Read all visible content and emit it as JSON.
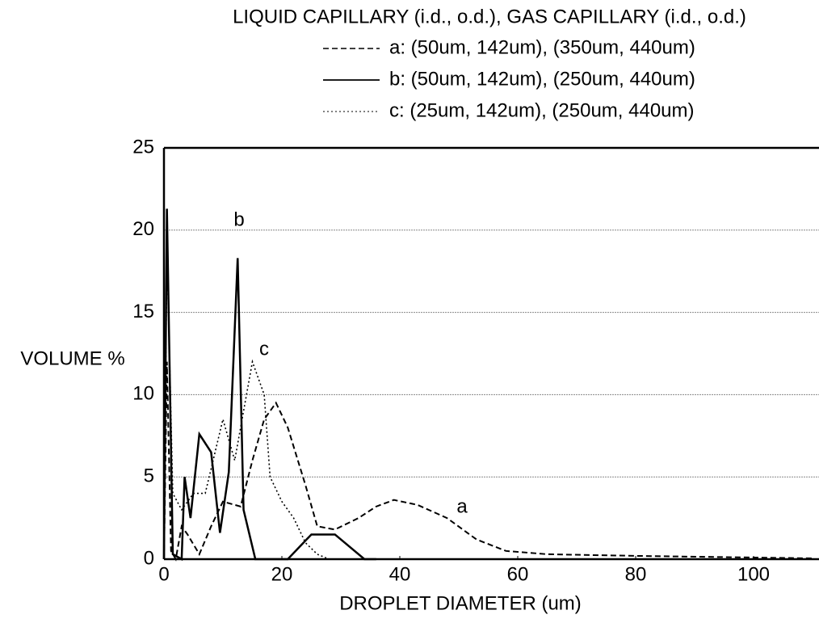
{
  "chart_data": {
    "type": "line",
    "title": "LIQUID CAPILLARY (i.d., o.d.), GAS CAPILLARY (i.d., o.d.)",
    "xlabel": "DROPLET DIAMETER (um)",
    "ylabel": "VOLUME %",
    "xlim": [
      0,
      110
    ],
    "ylim": [
      0,
      25
    ],
    "xticks": [
      0,
      20,
      40,
      60,
      80,
      100
    ],
    "yticks": [
      0,
      5,
      10,
      15,
      20,
      25
    ],
    "grid": true,
    "series": [
      {
        "name": "a: (50um, 142um), (350um, 440um)",
        "color": "#000000",
        "style": "dashed",
        "x": [
          0,
          0.5,
          1.2,
          2,
          3,
          4,
          6,
          8,
          10,
          13,
          15,
          17,
          19,
          21,
          24,
          26,
          29,
          33,
          36,
          39,
          43,
          48,
          53,
          58,
          65,
          80,
          100,
          110
        ],
        "values": [
          0,
          12,
          0.5,
          0,
          2,
          1.5,
          0.3,
          2,
          3.5,
          3.2,
          6,
          8.5,
          9.5,
          8,
          4.5,
          2,
          1.8,
          2.5,
          3.2,
          3.6,
          3.3,
          2.5,
          1.2,
          0.5,
          0.3,
          0.2,
          0.1,
          0.05
        ]
      },
      {
        "name": "b: (50um, 142um), (250um, 440um)",
        "color": "#000000",
        "style": "solid",
        "x": [
          0,
          0.5,
          1.5,
          3,
          3.5,
          4.5,
          6,
          8,
          9.5,
          11,
          12.5,
          13.5,
          15.5,
          21,
          25,
          29,
          34,
          36
        ],
        "values": [
          0,
          21.3,
          0.3,
          0,
          5,
          2.5,
          7.6,
          6.5,
          1.6,
          5.3,
          18.3,
          3,
          0,
          0,
          1.5,
          1.5,
          0,
          0
        ]
      },
      {
        "name": "c: (25um, 142um), (250um, 440um)",
        "color": "#000000",
        "style": "dotted",
        "x": [
          0,
          0.5,
          1.5,
          3,
          5,
          7,
          10,
          12,
          13,
          15,
          17,
          18,
          20,
          22,
          24,
          26,
          28
        ],
        "values": [
          0,
          19,
          4,
          3,
          4,
          4,
          8.5,
          6,
          8,
          12,
          10,
          5,
          3.5,
          2.5,
          1,
          0.3,
          0
        ]
      }
    ],
    "annotations": [
      "a",
      "b",
      "c"
    ]
  }
}
